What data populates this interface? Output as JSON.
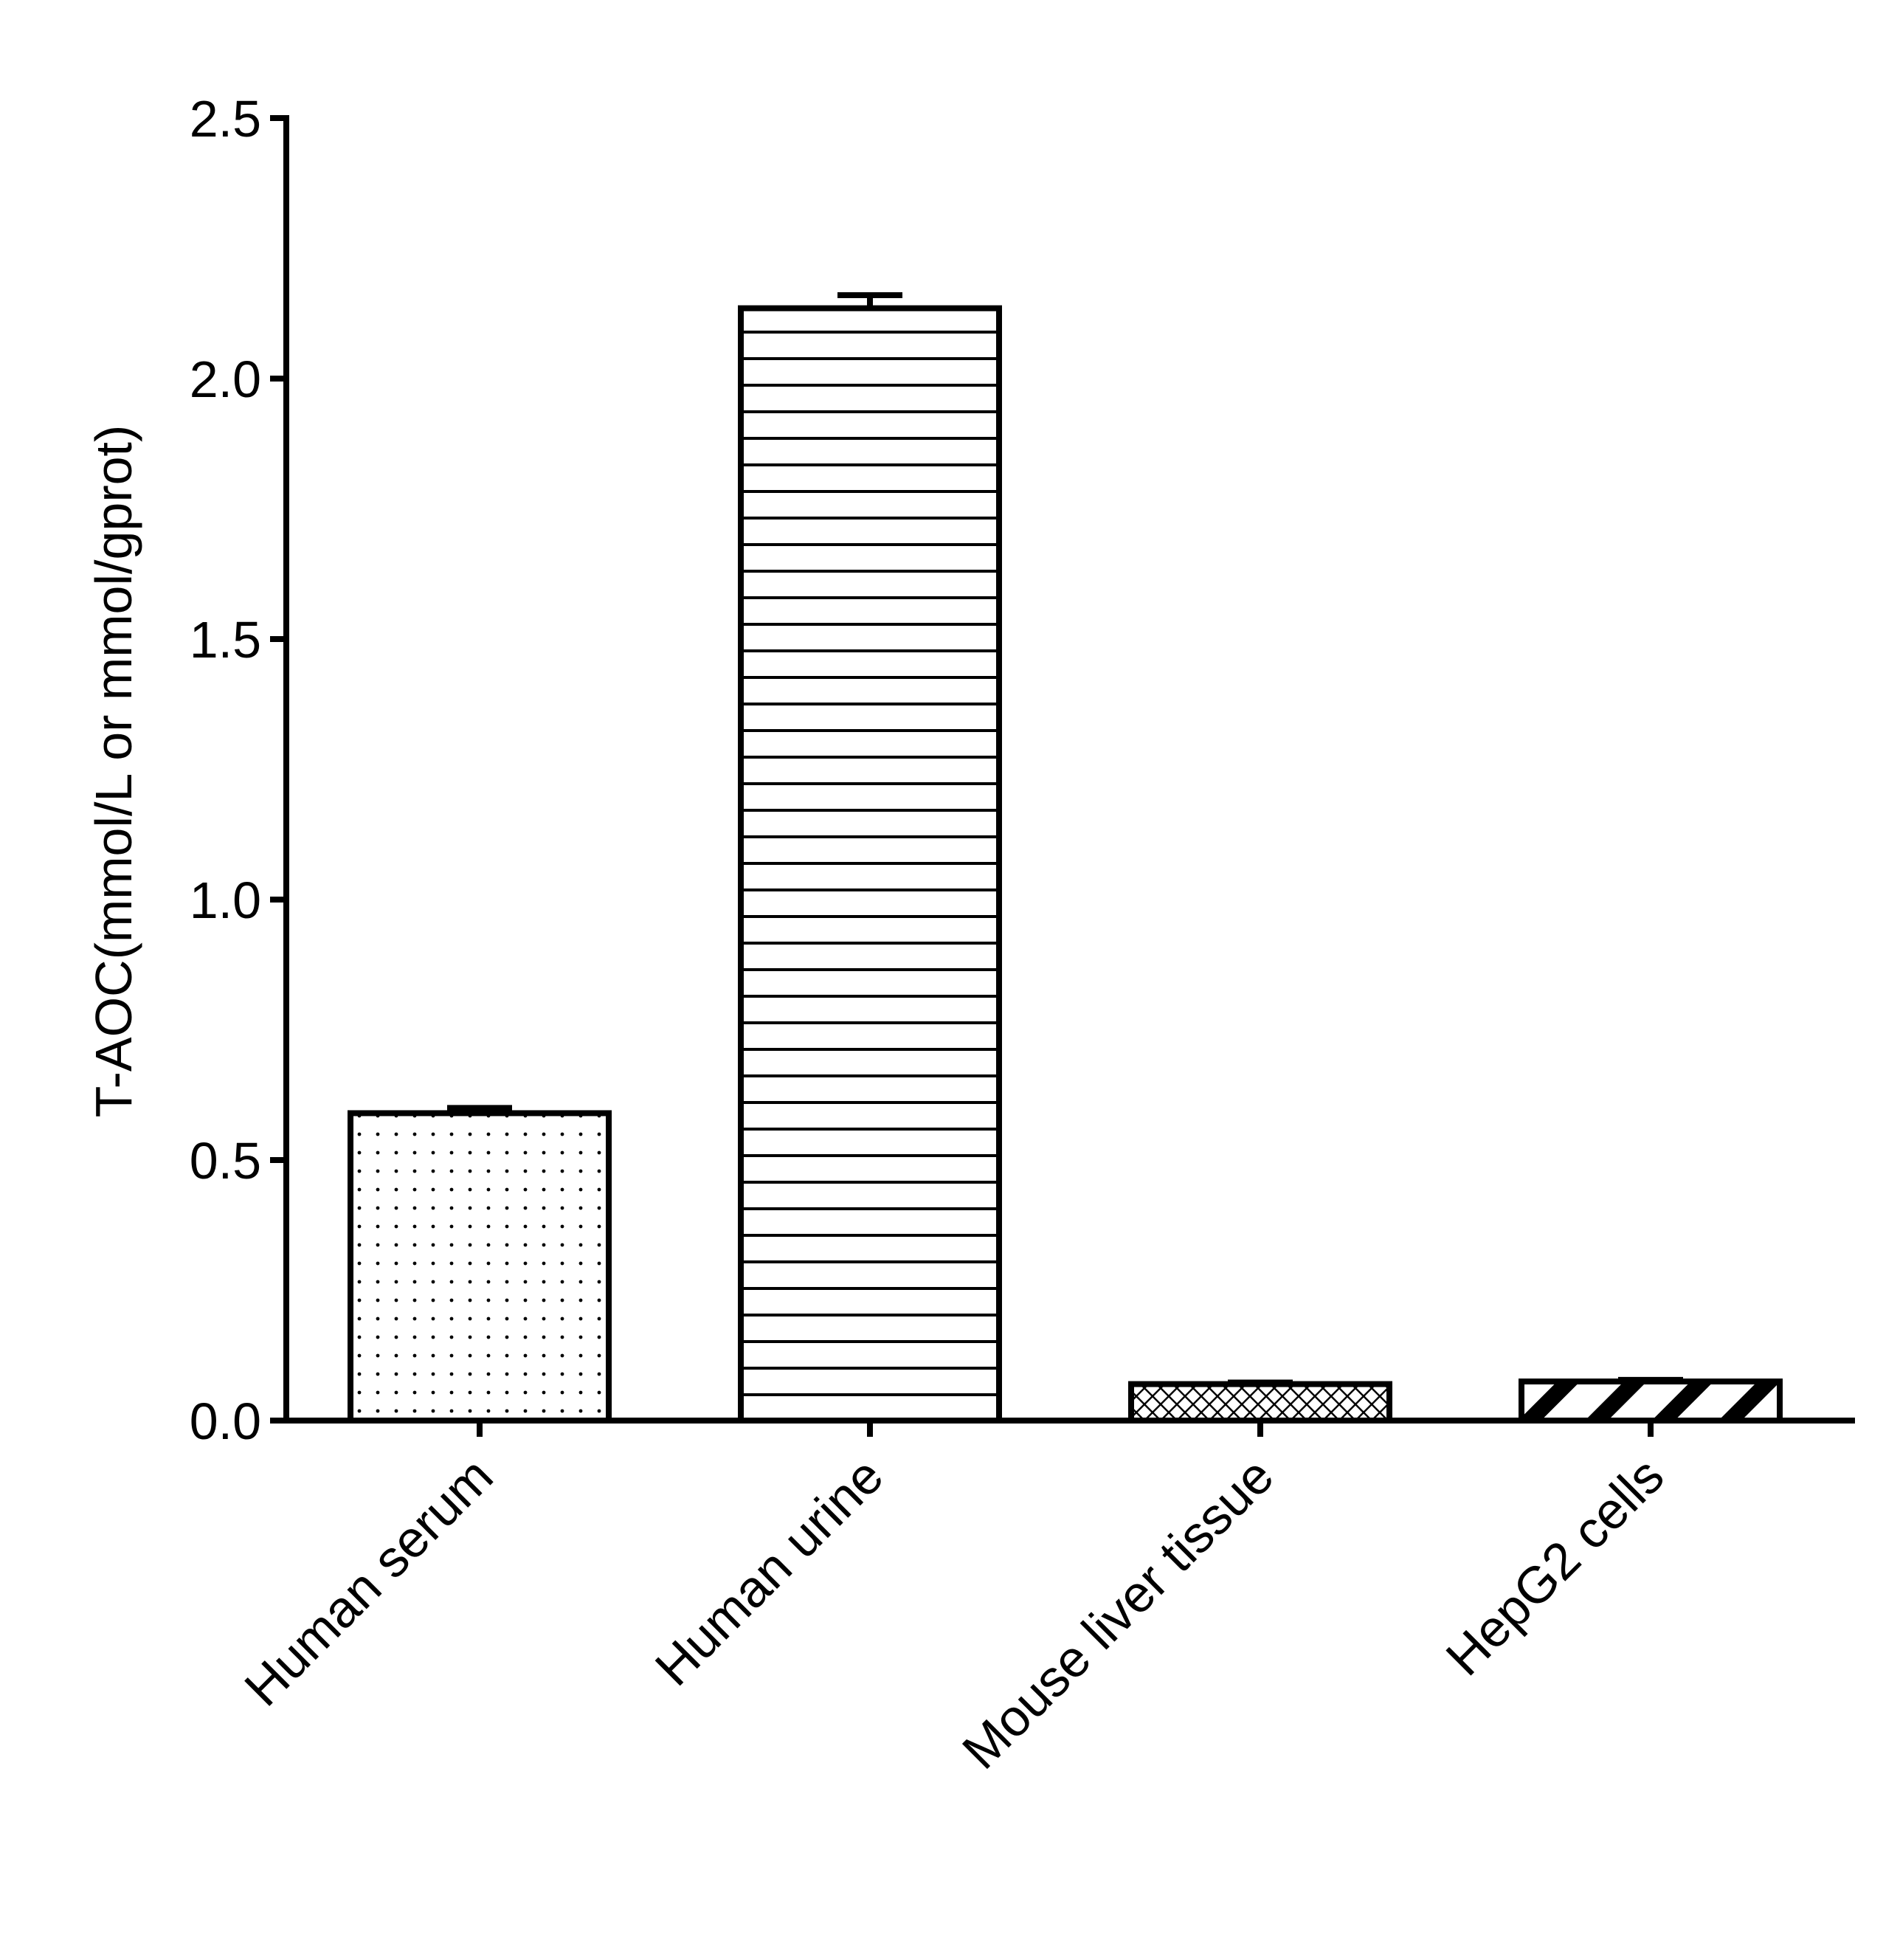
{
  "chart_data": {
    "type": "bar",
    "title": "",
    "xlabel": "",
    "ylabel": "T-AOC(mmol/L or mmol/gprot)",
    "ylim": [
      0,
      2.5
    ],
    "yticks": [
      "0.0",
      "0.5",
      "1.0",
      "1.5",
      "2.0",
      "2.5"
    ],
    "categories": [
      "Human serum",
      "Human urine",
      "Mouse liver tissue",
      "HepG2 cells"
    ],
    "values": [
      0.59,
      2.135,
      0.07,
      0.075
    ],
    "errors": [
      0.01,
      0.025,
      0.003,
      0.003
    ],
    "patterns": [
      "dots",
      "horizontal-lines",
      "crosshatch",
      "wide-diagonal"
    ],
    "grid": false,
    "legend": "none"
  }
}
